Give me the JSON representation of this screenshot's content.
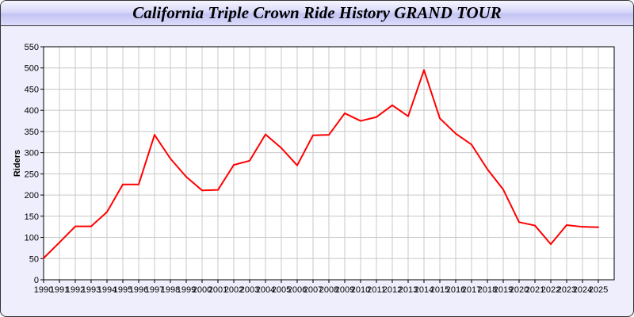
{
  "chart_data": {
    "type": "line",
    "title": "California Triple Crown Ride History GRAND TOUR",
    "xlabel": "",
    "ylabel": "Riders",
    "ylim": [
      0,
      550
    ],
    "yticks": [
      0,
      50,
      100,
      150,
      200,
      250,
      300,
      350,
      400,
      450,
      500,
      550
    ],
    "grid": true,
    "line_color": "#ff0000",
    "x": [
      "1990",
      "1991",
      "1992",
      "1993",
      "1994",
      "1995",
      "1996",
      "1997",
      "1998",
      "1999",
      "2000",
      "2001",
      "2002",
      "2003",
      "2004",
      "2005",
      "2006",
      "2007",
      "2008",
      "2009",
      "2010",
      "2011",
      "2012",
      "2013",
      "2014",
      "2015",
      "2016",
      "2017",
      "2018",
      "2019",
      "2020",
      "2021",
      "2022",
      "2023",
      "2024",
      "2025"
    ],
    "series": [
      {
        "values": [
          51,
          88,
          126,
          126,
          160,
          225,
          225,
          342,
          286,
          243,
          211,
          212,
          271,
          281,
          343,
          311,
          270,
          341,
          342,
          393,
          375,
          384,
          412,
          386,
          495,
          381,
          345,
          319,
          261,
          213,
          136,
          128,
          84,
          129,
          125,
          124
        ]
      }
    ]
  }
}
